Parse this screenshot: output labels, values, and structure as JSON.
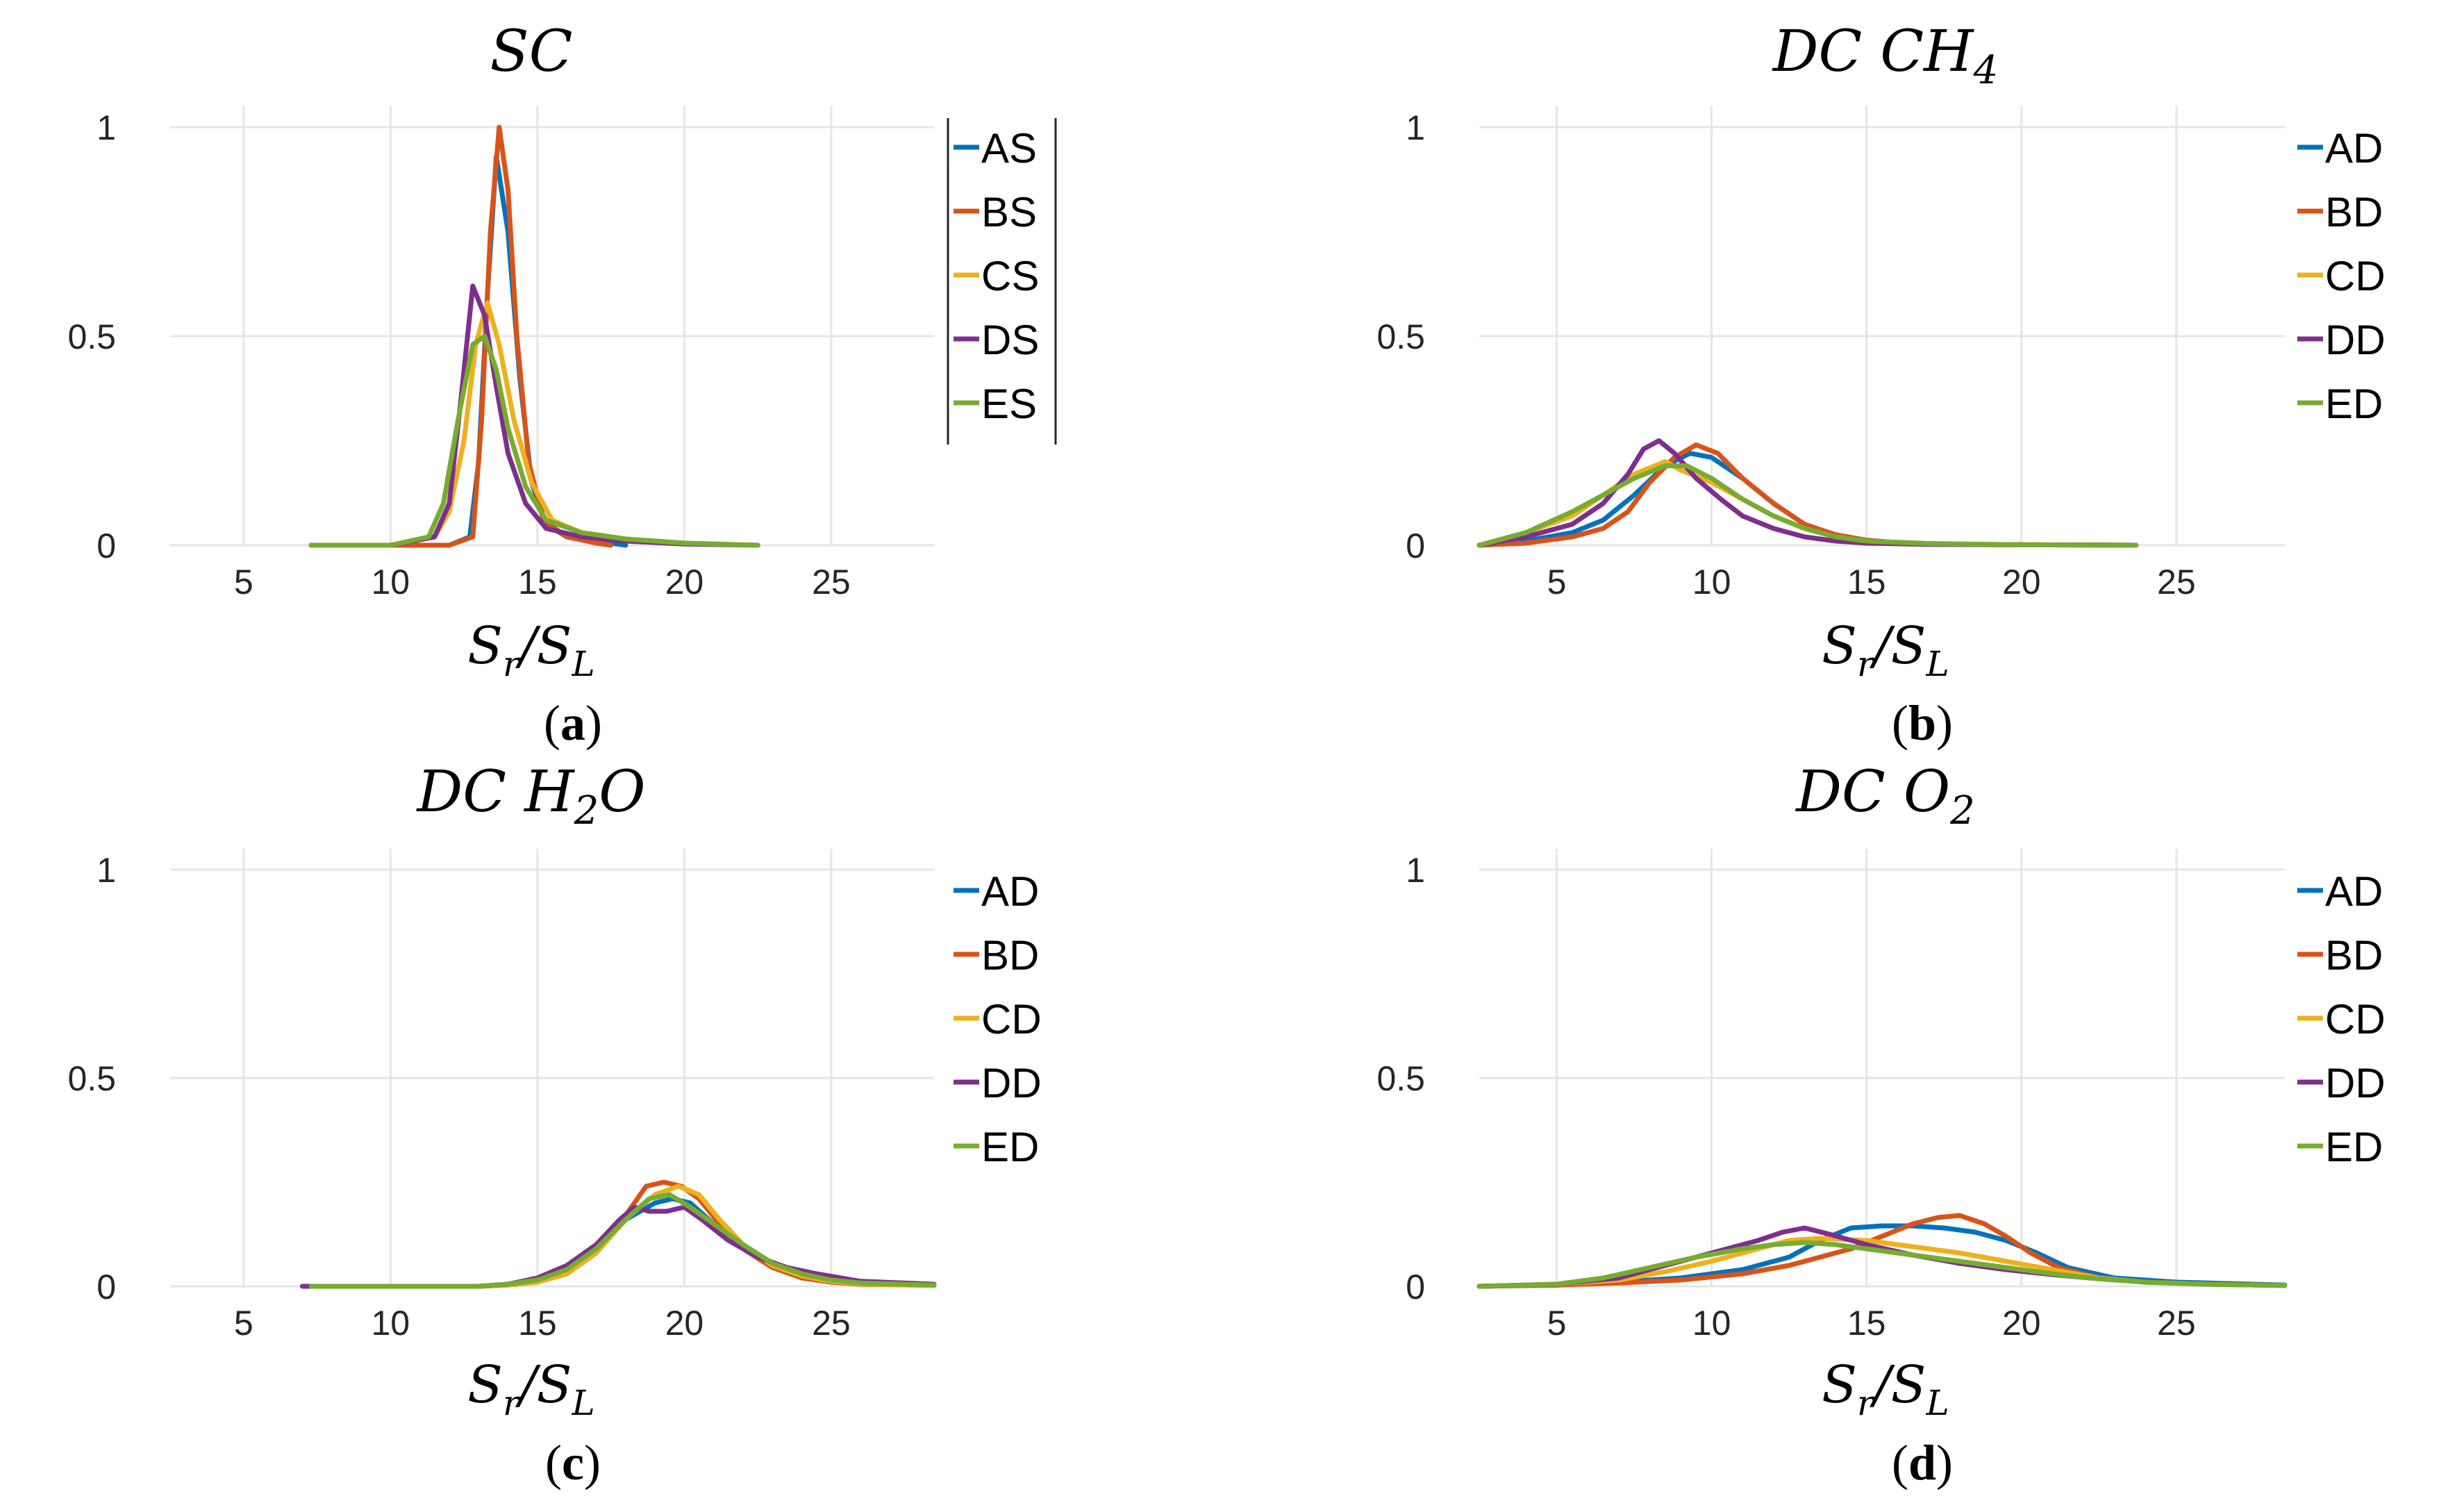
{
  "colors": {
    "blue": "#0072BD",
    "orange": "#D95319",
    "yellow": "#EDB120",
    "purple": "#7E2F8E",
    "green": "#77AC30"
  },
  "chart_data": [
    {
      "id": "a",
      "type": "line",
      "title": "SC",
      "caption_letter": "a",
      "xlabel": "Sr/SL",
      "ylabel": "",
      "xlim": [
        2.5,
        28.5
      ],
      "ylim": [
        0,
        1.05
      ],
      "xticks": [
        5,
        10,
        15,
        20,
        25
      ],
      "yticks": [
        0,
        0.5,
        1
      ],
      "xtick_labels": [
        "5",
        "10",
        "15",
        "20",
        "25"
      ],
      "ytick_labels": [
        "0",
        "0.5",
        "1"
      ],
      "grid": true,
      "legend_position": "top-right",
      "legend_boxed": true,
      "series": [
        {
          "name": "AS",
          "color": "#0072BD",
          "x": [
            7.3,
            10,
            12,
            12.7,
            13.0,
            13.3,
            13.6,
            14.0,
            14.4,
            14.8,
            15.3,
            16,
            17,
            18
          ],
          "y": [
            0,
            0,
            0,
            0.02,
            0.2,
            0.6,
            0.93,
            0.75,
            0.4,
            0.15,
            0.05,
            0.02,
            0.01,
            0
          ]
        },
        {
          "name": "BS",
          "color": "#D95319",
          "x": [
            7.3,
            10,
            12,
            12.8,
            13.1,
            13.4,
            13.7,
            14.0,
            14.3,
            14.7,
            15.2,
            16,
            17,
            17.5
          ],
          "y": [
            0,
            0,
            0,
            0.02,
            0.3,
            0.75,
            1.0,
            0.85,
            0.5,
            0.2,
            0.06,
            0.02,
            0.005,
            0
          ]
        },
        {
          "name": "CS",
          "color": "#EDB120",
          "x": [
            7.3,
            10,
            11.5,
            12.0,
            12.5,
            12.9,
            13.3,
            13.7,
            14.2,
            14.8,
            15.5,
            16.5,
            18,
            20,
            22.5
          ],
          "y": [
            0,
            0,
            0.02,
            0.08,
            0.25,
            0.48,
            0.58,
            0.48,
            0.3,
            0.15,
            0.06,
            0.03,
            0.015,
            0.005,
            0
          ]
        },
        {
          "name": "DS",
          "color": "#7E2F8E",
          "x": [
            7.3,
            10,
            11.5,
            12.0,
            12.4,
            12.8,
            13.2,
            13.6,
            14.0,
            14.6,
            15.3,
            16.5,
            18,
            20,
            22.5
          ],
          "y": [
            0,
            0,
            0.02,
            0.1,
            0.35,
            0.62,
            0.55,
            0.38,
            0.22,
            0.1,
            0.04,
            0.02,
            0.01,
            0.003,
            0
          ]
        },
        {
          "name": "ES",
          "color": "#77AC30",
          "x": [
            7.3,
            10,
            11.3,
            11.8,
            12.3,
            12.8,
            13.2,
            13.6,
            14.0,
            14.6,
            15.3,
            16.5,
            18,
            20,
            22.5
          ],
          "y": [
            0,
            0,
            0.02,
            0.1,
            0.3,
            0.48,
            0.5,
            0.42,
            0.28,
            0.14,
            0.06,
            0.03,
            0.015,
            0.005,
            0
          ]
        }
      ]
    },
    {
      "id": "b",
      "type": "line",
      "title": "DC CH4",
      "title_main": "DC CH",
      "title_sub": "4",
      "caption_letter": "b",
      "xlabel": "Sr/SL",
      "ylabel": "",
      "xlim": [
        2.5,
        28.5
      ],
      "ylim": [
        0,
        1.05
      ],
      "xticks": [
        5,
        10,
        15,
        20,
        25
      ],
      "yticks": [
        0,
        0.5,
        1
      ],
      "xtick_labels": [
        "5",
        "10",
        "15",
        "20",
        "25"
      ],
      "ytick_labels": [
        "0",
        "0.5",
        "1"
      ],
      "grid": true,
      "legend_position": "top-right",
      "legend_boxed": false,
      "series": [
        {
          "name": "AD",
          "color": "#0072BD",
          "x": [
            2.5,
            4,
            5.5,
            6.5,
            7.5,
            8.5,
            9.3,
            10.0,
            11,
            12,
            13,
            14,
            15,
            16,
            18,
            20,
            23.7
          ],
          "y": [
            0,
            0.01,
            0.03,
            0.06,
            0.12,
            0.19,
            0.22,
            0.21,
            0.16,
            0.1,
            0.05,
            0.025,
            0.012,
            0.006,
            0.002,
            0.001,
            0
          ]
        },
        {
          "name": "BD",
          "color": "#D95319",
          "x": [
            2.5,
            4,
            5.5,
            6.5,
            7.3,
            8.0,
            8.8,
            9.5,
            10.2,
            11,
            12,
            13,
            14,
            15,
            16,
            18,
            20,
            23.7
          ],
          "y": [
            0,
            0.005,
            0.02,
            0.04,
            0.08,
            0.15,
            0.21,
            0.24,
            0.22,
            0.16,
            0.1,
            0.05,
            0.025,
            0.012,
            0.006,
            0.002,
            0.001,
            0
          ]
        },
        {
          "name": "CD",
          "color": "#EDB120",
          "x": [
            2.5,
            4,
            5.5,
            6.5,
            7.5,
            8.5,
            9.0,
            10,
            11,
            12,
            13,
            14,
            15,
            17,
            20,
            23.7
          ],
          "y": [
            0,
            0.03,
            0.07,
            0.12,
            0.17,
            0.2,
            0.18,
            0.15,
            0.11,
            0.07,
            0.04,
            0.02,
            0.01,
            0.004,
            0.001,
            0
          ]
        },
        {
          "name": "DD",
          "color": "#7E2F8E",
          "x": [
            2.5,
            4,
            5.5,
            6.5,
            7.3,
            7.8,
            8.3,
            8.8,
            9.5,
            10.3,
            11,
            12,
            13,
            14,
            15,
            17,
            20,
            23.7
          ],
          "y": [
            0,
            0.02,
            0.05,
            0.1,
            0.17,
            0.23,
            0.25,
            0.22,
            0.16,
            0.11,
            0.07,
            0.04,
            0.02,
            0.01,
            0.005,
            0.002,
            0.001,
            0
          ]
        },
        {
          "name": "ED",
          "color": "#77AC30",
          "x": [
            2.5,
            4,
            5.5,
            6.5,
            7.5,
            8.5,
            9.2,
            10,
            11,
            12,
            13,
            14,
            15,
            17,
            20,
            23.7
          ],
          "y": [
            0,
            0.03,
            0.08,
            0.12,
            0.16,
            0.19,
            0.19,
            0.16,
            0.11,
            0.07,
            0.04,
            0.02,
            0.01,
            0.004,
            0.001,
            0
          ]
        }
      ]
    },
    {
      "id": "c",
      "type": "line",
      "title": "DC H2O",
      "title_main": "DC H",
      "title_sub": "2",
      "title_tail": "O",
      "caption_letter": "c",
      "xlabel": "Sr/SL",
      "ylabel": "",
      "xlim": [
        2.5,
        28.5
      ],
      "ylim": [
        0,
        1.05
      ],
      "xticks": [
        5,
        10,
        15,
        20,
        25
      ],
      "yticks": [
        0,
        0.5,
        1
      ],
      "xtick_labels": [
        "5",
        "10",
        "15",
        "20",
        "25"
      ],
      "ytick_labels": [
        "0",
        "0.5",
        "1"
      ],
      "grid": true,
      "legend_position": "top-right",
      "legend_boxed": false,
      "series": [
        {
          "name": "AD",
          "color": "#0072BD",
          "x": [
            7.3,
            13,
            14,
            15,
            16,
            17,
            18,
            19,
            19.6,
            20.2,
            21,
            22,
            23,
            24,
            25,
            26,
            28.5
          ],
          "y": [
            0,
            0,
            0.005,
            0.015,
            0.04,
            0.09,
            0.16,
            0.2,
            0.21,
            0.2,
            0.15,
            0.1,
            0.055,
            0.03,
            0.015,
            0.008,
            0.003
          ]
        },
        {
          "name": "BD",
          "color": "#D95319",
          "x": [
            7.3,
            13,
            14,
            15,
            16,
            17,
            18,
            18.7,
            19.3,
            19.9,
            20.5,
            21.2,
            22,
            23,
            24,
            25,
            26,
            28.5
          ],
          "y": [
            0,
            0,
            0.003,
            0.01,
            0.03,
            0.08,
            0.17,
            0.24,
            0.25,
            0.24,
            0.21,
            0.15,
            0.09,
            0.045,
            0.02,
            0.01,
            0.005,
            0.002
          ]
        },
        {
          "name": "CD",
          "color": "#EDB120",
          "x": [
            7.3,
            13,
            14,
            15,
            16,
            17,
            18,
            19,
            19.8,
            20.5,
            21.2,
            22,
            23,
            24,
            25,
            26,
            28.5
          ],
          "y": [
            0,
            0,
            0.003,
            0.01,
            0.03,
            0.08,
            0.16,
            0.22,
            0.24,
            0.22,
            0.16,
            0.1,
            0.05,
            0.025,
            0.012,
            0.006,
            0.002
          ]
        },
        {
          "name": "DD",
          "color": "#7E2F8E",
          "x": [
            7.0,
            7.3,
            13,
            14,
            15,
            16,
            17,
            17.8,
            18.3,
            18.8,
            19.4,
            20,
            20.6,
            21.5,
            22.5,
            23.5,
            24.5,
            26,
            28.5
          ],
          "y": [
            0,
            0,
            0,
            0.005,
            0.02,
            0.05,
            0.1,
            0.16,
            0.19,
            0.18,
            0.18,
            0.19,
            0.16,
            0.11,
            0.07,
            0.045,
            0.03,
            0.012,
            0.005
          ]
        },
        {
          "name": "ED",
          "color": "#77AC30",
          "x": [
            7.3,
            13,
            14,
            15,
            16,
            17,
            18,
            18.8,
            19.5,
            20.2,
            21,
            22,
            23,
            24,
            25,
            26,
            28.5
          ],
          "y": [
            0,
            0,
            0.005,
            0.015,
            0.04,
            0.09,
            0.16,
            0.21,
            0.22,
            0.19,
            0.15,
            0.1,
            0.055,
            0.03,
            0.015,
            0.008,
            0.003
          ]
        }
      ]
    },
    {
      "id": "d",
      "type": "line",
      "title": "DC O2",
      "title_main": "DC O",
      "title_sub": "2",
      "caption_letter": "d",
      "xlabel": "Sr/SL",
      "ylabel": "",
      "xlim": [
        2.5,
        28.5
      ],
      "ylim": [
        0,
        1.05
      ],
      "xticks": [
        5,
        10,
        15,
        20,
        25
      ],
      "yticks": [
        0,
        0.5,
        1
      ],
      "xtick_labels": [
        "5",
        "10",
        "15",
        "20",
        "25"
      ],
      "ytick_labels": [
        "0",
        "0.5",
        "1"
      ],
      "grid": true,
      "legend_position": "top-right",
      "legend_boxed": false,
      "series": [
        {
          "name": "AD",
          "color": "#0072BD",
          "x": [
            2.5,
            5,
            7,
            9,
            11,
            12.5,
            13.5,
            14.5,
            15.5,
            16.5,
            17.5,
            18.5,
            19.5,
            20.5,
            21.5,
            23,
            25,
            28.5
          ],
          "y": [
            0,
            0.003,
            0.01,
            0.02,
            0.04,
            0.07,
            0.11,
            0.14,
            0.145,
            0.145,
            0.14,
            0.13,
            0.11,
            0.08,
            0.045,
            0.02,
            0.01,
            0.003
          ]
        },
        {
          "name": "BD",
          "color": "#D95319",
          "x": [
            2.5,
            5,
            7,
            9,
            11,
            12.5,
            13.5,
            14.5,
            15.5,
            16.5,
            17.3,
            18.0,
            18.8,
            19.5,
            20.3,
            21.2,
            22.5,
            24,
            26,
            28.5
          ],
          "y": [
            0,
            0.003,
            0.008,
            0.015,
            0.03,
            0.05,
            0.07,
            0.09,
            0.12,
            0.15,
            0.165,
            0.17,
            0.15,
            0.12,
            0.08,
            0.045,
            0.02,
            0.01,
            0.005,
            0.002
          ]
        },
        {
          "name": "CD",
          "color": "#EDB120",
          "x": [
            2.5,
            5,
            7,
            8.5,
            10,
            11.5,
            12.5,
            13.5,
            15,
            16.5,
            18,
            19.5,
            21,
            22.5,
            24,
            26,
            28.5
          ],
          "y": [
            0,
            0.005,
            0.015,
            0.035,
            0.06,
            0.09,
            0.11,
            0.115,
            0.11,
            0.095,
            0.08,
            0.06,
            0.04,
            0.02,
            0.01,
            0.005,
            0.002
          ]
        },
        {
          "name": "DD",
          "color": "#7E2F8E",
          "x": [
            2.5,
            5,
            7,
            8.5,
            10,
            11.5,
            12.3,
            13.0,
            13.8,
            15,
            16.5,
            18,
            19.5,
            21,
            22.5,
            24,
            26,
            28.5
          ],
          "y": [
            0,
            0.005,
            0.02,
            0.05,
            0.08,
            0.11,
            0.13,
            0.14,
            0.125,
            0.1,
            0.075,
            0.055,
            0.04,
            0.028,
            0.018,
            0.01,
            0.005,
            0.002
          ]
        },
        {
          "name": "ED",
          "color": "#77AC30",
          "x": [
            2.5,
            5,
            6.5,
            8,
            9.5,
            11,
            12,
            13,
            14,
            15,
            16.5,
            18,
            19.5,
            21,
            22.5,
            24,
            26,
            28.5
          ],
          "y": [
            0,
            0.005,
            0.02,
            0.045,
            0.07,
            0.09,
            0.1,
            0.105,
            0.1,
            0.09,
            0.075,
            0.06,
            0.045,
            0.03,
            0.018,
            0.01,
            0.005,
            0.002
          ]
        }
      ]
    }
  ]
}
